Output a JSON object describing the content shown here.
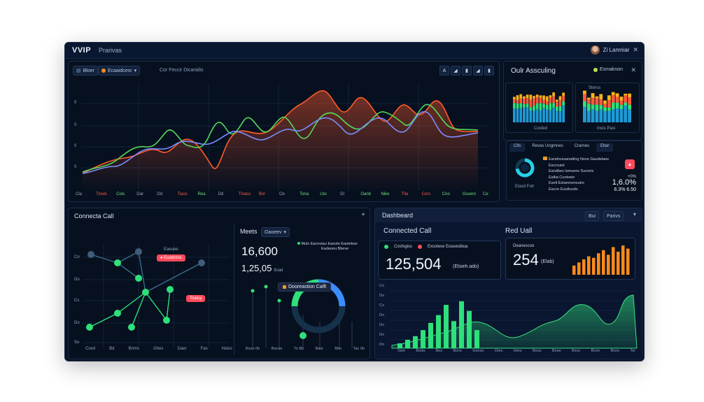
{
  "titlebar": {
    "brand": "VVIP",
    "title": "Prarivas",
    "user": "Zi Lanmiar",
    "close": "✕"
  },
  "main_chart": {
    "tabs": [
      "Bloer",
      "Ecaaidcesr"
    ],
    "subtitle": "Cor Feccir Dicanidis",
    "tool_icons": [
      "A",
      "◢",
      "▮",
      "◢",
      "▮"
    ],
    "yticks": [
      "0",
      "0",
      "0",
      "0"
    ],
    "xticks": [
      {
        "t": "Cla",
        "c": "#9aa8bf"
      },
      {
        "t": "Tinels",
        "c": "#ff5a4a"
      },
      {
        "t": "Cois",
        "c": "#6fe07a"
      },
      {
        "t": "Dar",
        "c": "#9aa8bf"
      },
      {
        "t": "Dd",
        "c": "#9aa8bf"
      },
      {
        "t": "Tiass",
        "c": "#ff5a4a"
      },
      {
        "t": "Rea",
        "c": "#6fe07a"
      },
      {
        "t": "Dd",
        "c": "#9aa8bf"
      },
      {
        "t": "Tinass",
        "c": "#ff5a4a"
      },
      {
        "t": "Bor",
        "c": "#ff5a4a"
      },
      {
        "t": "Oo",
        "c": "#9aa8bf"
      },
      {
        "t": "Tona",
        "c": "#6fe07a"
      },
      {
        "t": "Lbs",
        "c": "#6fe07a"
      },
      {
        "t": "Dl",
        "c": "#9aa8bf"
      },
      {
        "t": "Oanb",
        "c": "#6fe07a"
      },
      {
        "t": "Nike",
        "c": "#6fe07a"
      },
      {
        "t": "Tlia",
        "c": "#ff5a4a"
      },
      {
        "t": "Cors",
        "c": "#ff5a4a"
      },
      {
        "t": "Cno",
        "c": "#6fe07a"
      },
      {
        "t": "Ouvers",
        "c": "#6fe07a"
      },
      {
        "t": "Ce",
        "c": "#6fe07a"
      }
    ]
  },
  "assets": {
    "title": "Oulr Assculing",
    "toggle": "Esmaknon",
    "chart_left_label": "Cosfed",
    "chart_right_label": "Insts Pasi",
    "chart_right_tag": "Sterus",
    "tabs": [
      "Cifs",
      "Revas Ungmnes",
      "Crarnes",
      "Eltar"
    ],
    "donut_label": "Elasd Fotr",
    "list": [
      "Eandnvssanatiing Nove Gaudelaee",
      "Escrsuiot",
      "Eandbes Ismuees Suoreis",
      "Ealtia Cuotoeio",
      "Eselt Estarenensutre",
      "Eacce Euuttuuds"
    ],
    "stat_top": "+0%",
    "stat_mid": "1,6.0%",
    "stat_low": "6.3% 6.50"
  },
  "network": {
    "title": "Connecta Call",
    "plus": "+",
    "yticks": [
      "Co",
      "Do",
      "Cs",
      "Do",
      "So"
    ],
    "xticks": [
      "Coxd",
      "Bd",
      "Bnms",
      "Ghes",
      "Daer",
      "Fas",
      "Nalss"
    ],
    "legend_top": "Eaeuee",
    "tag1": "Euadress",
    "tag2": "Toaluy"
  },
  "meets": {
    "label": "Meets",
    "dropdown": "Oaoeev",
    "value1": "16,600",
    "value2": "1,25,05",
    "value2_unit": "tload",
    "legend": [
      "Muls",
      "Eacnutau Eaoute Eaoiebue",
      "Eadaoeu Bbeve"
    ],
    "callout": "Dooreastion Calft",
    "xticks": [
      "Bcoe 0b",
      "Bocae",
      "To Bb",
      "Baie",
      "Bbe",
      "Tac 0b"
    ]
  },
  "dashboard": {
    "title": "Dashbeard",
    "btn1": "Bui",
    "btn2": "Parivs",
    "connected_label": "Connected Call",
    "legend1": "Cosfsgiss",
    "legend2": "Excolese Eoasesibua",
    "connected_value": "125,504",
    "connected_unit": "(Elsieh.ado)",
    "red_label": "Red Uall",
    "red_sub": "Deanescoo",
    "red_value": "254",
    "red_unit": "(Elab)",
    "yticks": [
      "Co",
      "Do",
      "Co",
      "Do",
      "Do",
      "Do",
      "Do"
    ],
    "xticks": [
      "Siee",
      "Boda",
      "Bes",
      "Boce",
      "Gonso",
      "Otes",
      "Iotes",
      "Boos",
      "Boee",
      "Bsco",
      "Bcee",
      "Bons",
      "Tor"
    ]
  },
  "colors": {
    "accent_red": "#ff4a5c",
    "accent_green": "#2ee07a",
    "accent_blue": "#3a8dff",
    "accent_orange": "#ff8a1a",
    "bg": "#07101f"
  }
}
